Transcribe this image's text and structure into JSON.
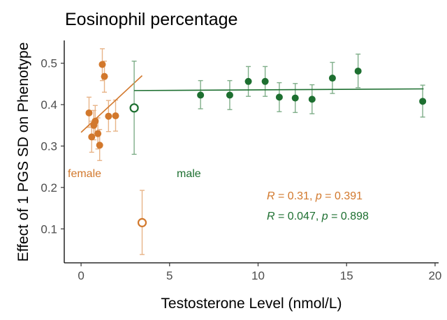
{
  "colors": {
    "female": "#d2782c",
    "male": "#1d6f30",
    "female_err": "#e8b488",
    "male_err": "#7fae89",
    "axis": "#000000",
    "tick_text": "#4d4d4d"
  },
  "chart_data": {
    "type": "scatter",
    "title": "Eosinophil percentage",
    "xlabel": "Testosterone Level (nmol/L)",
    "ylabel": "Effect of 1 PGS SD on Phenotype",
    "xlim": [
      -0.95,
      20.2
    ],
    "ylim": [
      0.018,
      0.555
    ],
    "x_ticks": [
      0,
      5,
      10,
      15,
      20
    ],
    "x_tick_labels": [
      "0",
      "5",
      "10",
      "15",
      "20"
    ],
    "y_ticks": [
      0.1,
      0.2,
      0.3,
      0.4,
      0.5
    ],
    "y_tick_labels": [
      "0.1",
      "0.2",
      "0.3",
      "0.4",
      "0.5"
    ],
    "grid": false,
    "series": [
      {
        "key": "female",
        "name": "female",
        "points": [
          {
            "x": 0.45,
            "y": 0.38,
            "lo": 0.345,
            "hi": 0.418
          },
          {
            "x": 0.6,
            "y": 0.322,
            "lo": 0.285,
            "hi": 0.36
          },
          {
            "x": 0.72,
            "y": 0.35,
            "lo": 0.315,
            "hi": 0.386
          },
          {
            "x": 0.8,
            "y": 0.36,
            "lo": 0.325,
            "hi": 0.398
          },
          {
            "x": 0.95,
            "y": 0.33,
            "lo": 0.293,
            "hi": 0.368
          },
          {
            "x": 1.05,
            "y": 0.302,
            "lo": 0.265,
            "hi": 0.34
          },
          {
            "x": 1.2,
            "y": 0.497,
            "lo": 0.458,
            "hi": 0.535
          },
          {
            "x": 1.32,
            "y": 0.468,
            "lo": 0.43,
            "hi": 0.505
          },
          {
            "x": 1.55,
            "y": 0.372,
            "lo": 0.335,
            "hi": 0.41
          },
          {
            "x": 1.95,
            "y": 0.373,
            "lo": 0.336,
            "hi": 0.411
          }
        ],
        "outlier": {
          "x": 3.45,
          "y": 0.115,
          "lo": 0.038,
          "hi": 0.193
        },
        "fit": {
          "x": [
            0.0,
            3.45
          ],
          "y": [
            0.333,
            0.47
          ]
        }
      },
      {
        "key": "male",
        "name": "male",
        "points": [
          {
            "x": 6.75,
            "y": 0.423,
            "lo": 0.39,
            "hi": 0.458
          },
          {
            "x": 8.4,
            "y": 0.423,
            "lo": 0.388,
            "hi": 0.458
          },
          {
            "x": 9.45,
            "y": 0.456,
            "lo": 0.42,
            "hi": 0.492
          },
          {
            "x": 10.4,
            "y": 0.456,
            "lo": 0.42,
            "hi": 0.492
          },
          {
            "x": 11.2,
            "y": 0.418,
            "lo": 0.383,
            "hi": 0.453
          },
          {
            "x": 12.1,
            "y": 0.416,
            "lo": 0.381,
            "hi": 0.451
          },
          {
            "x": 13.05,
            "y": 0.413,
            "lo": 0.378,
            "hi": 0.448
          },
          {
            "x": 14.2,
            "y": 0.464,
            "lo": 0.427,
            "hi": 0.502
          },
          {
            "x": 15.65,
            "y": 0.481,
            "lo": 0.441,
            "hi": 0.522
          },
          {
            "x": 19.3,
            "y": 0.408,
            "lo": 0.37,
            "hi": 0.447
          }
        ],
        "outlier": {
          "x": 3.0,
          "y": 0.392,
          "lo": 0.28,
          "hi": 0.505
        },
        "fit": {
          "x": [
            3.0,
            19.35
          ],
          "y": [
            0.434,
            0.438
          ]
        }
      }
    ],
    "annotations": {
      "female_label": "female",
      "male_label": "male",
      "female_stat": {
        "r_symbol": "R",
        "r_value": " = 0.31, ",
        "p_symbol": "p",
        "p_value": " = 0.391"
      },
      "male_stat": {
        "r_symbol": "R",
        "r_value": " = 0.047, ",
        "p_symbol": "p",
        "p_value": " = 0.898"
      }
    }
  }
}
